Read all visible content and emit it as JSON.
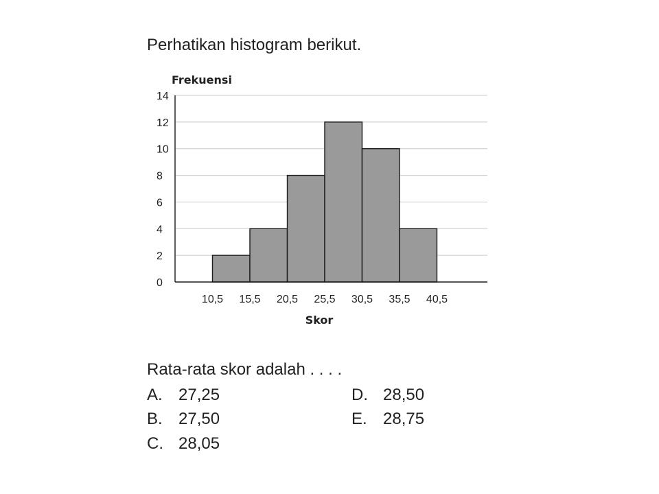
{
  "intro_text": "Perhatikan histogram berikut.",
  "question": {
    "text": "Rata-rata skor adalah . . . .",
    "options": [
      {
        "letter": "A.",
        "value": "27,25"
      },
      {
        "letter": "B.",
        "value": "27,50"
      },
      {
        "letter": "C.",
        "value": "28,05"
      },
      {
        "letter": "D.",
        "value": "28,50"
      },
      {
        "letter": "E.",
        "value": "28,75"
      }
    ]
  },
  "chart_data": {
    "type": "bar",
    "subtype": "histogram",
    "ylabel": "Frekuensi",
    "xlabel": "Skor",
    "bin_edges": [
      10.5,
      15.5,
      20.5,
      25.5,
      30.5,
      35.5,
      40.5
    ],
    "x_tick_labels": [
      "10,5",
      "15,5",
      "20,5",
      "25,5",
      "30,5",
      "35,5",
      "40,5"
    ],
    "values": [
      2,
      4,
      8,
      12,
      10,
      4
    ],
    "y_ticks": [
      0,
      2,
      4,
      6,
      8,
      10,
      12,
      14
    ],
    "ylim": [
      0,
      14
    ],
    "grid": true,
    "bar_color": "#9a9a9a"
  }
}
